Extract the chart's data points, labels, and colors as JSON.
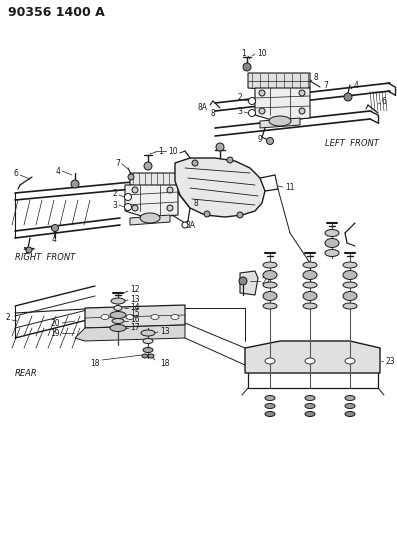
{
  "title": "90356 1400 A",
  "bg": "#ffffff",
  "lc": "#1a1a1a",
  "title_fs": 9,
  "label_fs": 6,
  "small_fs": 5.5,
  "labels": {
    "left_front": "LEFT  FRONT",
    "right_front": "RIGHT  FRONT",
    "rear": "REAR"
  }
}
